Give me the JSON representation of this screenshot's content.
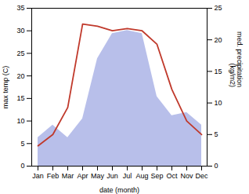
{
  "chart_data": {
    "type": "line",
    "categories": [
      "Jan",
      "Feb",
      "Mar",
      "Apr",
      "May",
      "Jun",
      "Jul",
      "Aug",
      "Sep",
      "Oct",
      "Nov",
      "Dec"
    ],
    "xlabel": "date (month)",
    "ylabel": "max temp (C)",
    "y2label": "med. precipitation\n(kg/m2)",
    "ylim": [
      0,
      35
    ],
    "yticks": [
      0,
      5,
      10,
      15,
      20,
      25,
      30,
      35
    ],
    "y2lim": [
      0,
      25
    ],
    "y2ticks": [
      0,
      5,
      10,
      15,
      20,
      25
    ],
    "series": [
      {
        "type": "area",
        "axis": "y2",
        "color": "#b0b8e8",
        "values": [
          4.5,
          6.5,
          4.5,
          7.5,
          17.0,
          21.0,
          21.5,
          21.0,
          11.0,
          8.0,
          8.5,
          6.5
        ]
      },
      {
        "type": "line",
        "color": "#c0392b",
        "values": [
          4.5,
          7.0,
          13.0,
          31.5,
          31.0,
          30.0,
          30.5,
          30.0,
          27.0,
          17.0,
          10.0,
          7.0
        ]
      }
    ]
  }
}
